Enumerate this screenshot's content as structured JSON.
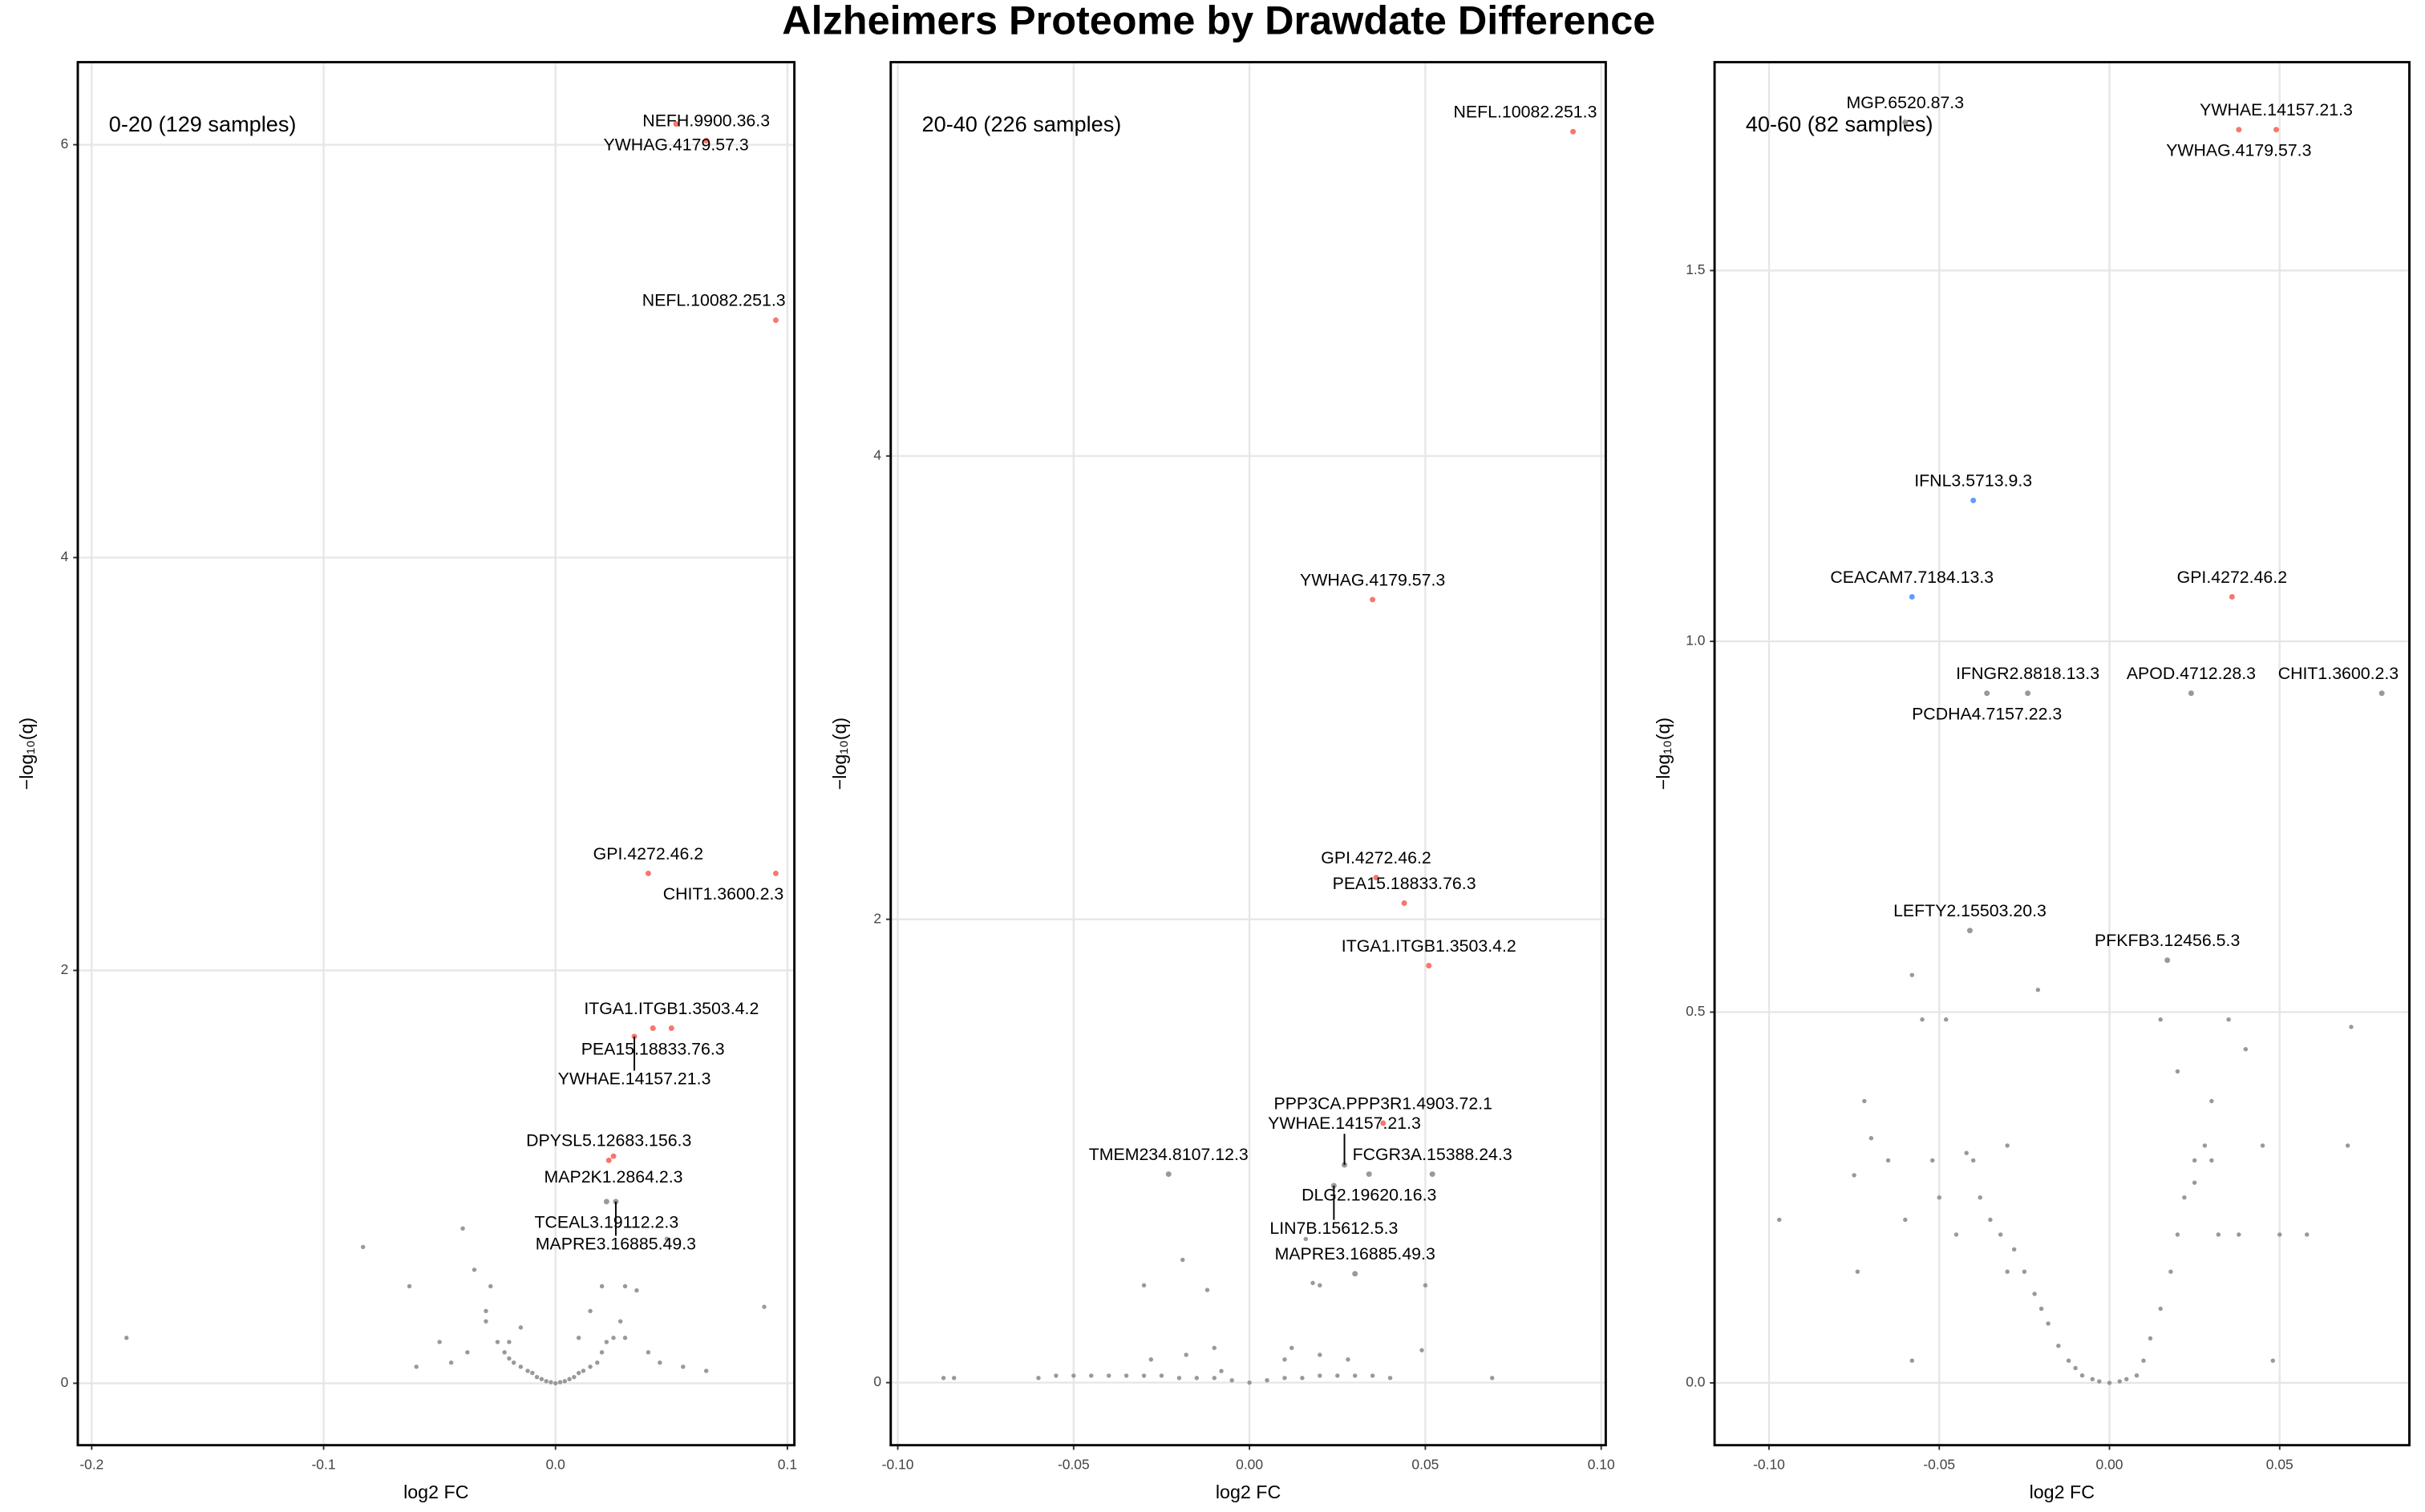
{
  "title": "Alzheimers Proteome by Drawdate Difference",
  "chart_data": [
    {
      "type": "scatter",
      "subtitle": "0-20 (129 samples)",
      "x_label": "log2 FC",
      "y_label": "−log₁₀(q)",
      "xlim": [
        -0.206,
        0.103
      ],
      "ylim": [
        -0.3,
        6.4
      ],
      "xticks": [
        -0.2,
        -0.1,
        {
          "value": 0,
          "label": "0.0"
        },
        0.1
      ],
      "yticks": [
        0,
        2,
        4,
        6
      ],
      "grid": true,
      "series": [
        {
          "color": "#f8766d",
          "x": [
            0.065,
            0.052,
            0.095,
            0.04,
            0.095,
            0.05,
            0.042,
            0.034,
            0.023,
            0.025
          ],
          "y": [
            6.02,
            6.1,
            5.15,
            2.47,
            2.47,
            1.72,
            1.72,
            1.68,
            1.08,
            1.1
          ],
          "labels": [
            "NEFH.9900.36.3",
            "YWHAG.4179.57.3",
            "NEFL.10082.251.3",
            "GPI.4272.46.2",
            "CHIT1.3600.2.3",
            "ITGA1.ITGB1.3503.4.2",
            "PEA15.18833.76.3",
            "YWHAE.14157.21.3",
            "DPYSL5.12683.156.3",
            "MAP2K1.2864.2.3"
          ]
        },
        {
          "color": "#999999",
          "x": [
            0.022,
            0.026
          ],
          "y": [
            0.88,
            0.88
          ],
          "labels": [
            "TCEAL3.19112.2.3",
            "MAPRE3.16885.49.3"
          ]
        },
        {
          "color": "#999999",
          "x": [
            -0.185,
            -0.083,
            -0.063,
            -0.06,
            -0.045,
            -0.04,
            -0.038,
            -0.035,
            -0.03,
            -0.028,
            -0.025,
            -0.022,
            -0.02,
            -0.018,
            -0.015,
            -0.012,
            -0.01,
            -0.008,
            -0.006,
            -0.004,
            -0.002,
            0,
            0.002,
            0.004,
            0.006,
            0.008,
            0.01,
            0.012,
            0.015,
            0.018,
            0.02,
            0.022,
            0.025,
            0.028,
            0.03,
            0.035,
            0.04,
            0.045,
            0.048,
            0.055,
            0.065,
            0.09,
            -0.05,
            -0.03,
            0.01,
            0.015,
            0.02,
            0.03,
            -0.015,
            -0.02
          ],
          "y": [
            0.22,
            0.66,
            0.47,
            0.08,
            0.1,
            0.75,
            0.15,
            0.55,
            0.3,
            0.47,
            0.2,
            0.15,
            0.12,
            0.1,
            0.08,
            0.06,
            0.05,
            0.03,
            0.02,
            0.01,
            0.005,
            0,
            0.005,
            0.01,
            0.02,
            0.03,
            0.05,
            0.06,
            0.08,
            0.1,
            0.15,
            0.2,
            0.22,
            0.3,
            0.47,
            0.45,
            0.15,
            0.1,
            0.7,
            0.08,
            0.06,
            0.37,
            0.2,
            0.35,
            0.22,
            0.35,
            0.47,
            0.22,
            0.27,
            0.2
          ]
        }
      ]
    },
    {
      "type": "scatter",
      "subtitle": "20-40 (226 samples)",
      "x_label": "log2 FC",
      "y_label": "−log₁₀(q)",
      "xlim": [
        -0.102,
        0.1013
      ],
      "ylim": [
        -0.27,
        5.7
      ],
      "xticks": [
        {
          "value": -0.1,
          "label": "-0.10"
        },
        {
          "value": -0.05,
          "label": "-0.05"
        },
        {
          "value": 0,
          "label": "0.00"
        },
        0.05,
        {
          "value": 0.1,
          "label": "0.10"
        }
      ],
      "yticks": [
        0,
        2,
        4
      ],
      "grid": true,
      "series": [
        {
          "color": "#f8766d",
          "x": [
            0.092,
            0.035,
            0.036,
            0.044,
            0.051,
            0.038
          ],
          "y": [
            5.4,
            3.38,
            2.18,
            2.07,
            1.8,
            1.12
          ],
          "labels": [
            "NEFL.10082.251.3",
            "YWHAG.4179.57.3",
            "GPI.4272.46.2",
            "PEA15.18833.76.3",
            "ITGA1.ITGB1.3503.4.2",
            "PPP3CA.PPP3R1.4903.72.1"
          ]
        },
        {
          "color": "#999999",
          "x": [
            0.052,
            0.034,
            0.027,
            0.024,
            -0.023,
            0.03
          ],
          "y": [
            0.9,
            0.9,
            0.94,
            0.85,
            0.9,
            0.47
          ],
          "labels": [
            "FCGR3A.15388.24.3",
            "DLG2.19620.16.3",
            "YWHAE.14157.21.3",
            "LIN7B.15612.5.3",
            "TMEM234.8107.12.3",
            "MAPRE3.16885.49.3"
          ]
        },
        {
          "color": "#999999",
          "x": [
            -0.087,
            -0.084,
            -0.06,
            -0.055,
            -0.05,
            -0.045,
            -0.04,
            -0.035,
            -0.03,
            -0.028,
            -0.025,
            -0.02,
            -0.015,
            -0.01,
            -0.005,
            0,
            0.005,
            0.01,
            0.015,
            0.02,
            0.025,
            0.03,
            0.035,
            0.04,
            -0.03,
            -0.019,
            -0.018,
            -0.012,
            -0.01,
            0.01,
            0.016,
            0.018,
            0.02,
            0.028,
            0.049,
            0.05,
            0.069,
            -0.008,
            0.012,
            0.02
          ],
          "y": [
            0.02,
            0.02,
            0.02,
            0.03,
            0.03,
            0.03,
            0.03,
            0.03,
            0.03,
            0.1,
            0.03,
            0.02,
            0.02,
            0.02,
            0.01,
            0,
            0.01,
            0.02,
            0.02,
            0.03,
            0.03,
            0.03,
            0.03,
            0.02,
            0.42,
            0.53,
            0.12,
            0.4,
            0.15,
            0.1,
            0.62,
            0.43,
            0.42,
            0.1,
            0.14,
            0.42,
            0.02,
            0.05,
            0.15,
            0.12
          ]
        }
      ]
    },
    {
      "type": "scatter",
      "subtitle": "40-60 (82 samples)",
      "x_label": "log2 FC",
      "y_label": "−log₁₀(q)",
      "xlim": [
        -0.116,
        0.0881
      ],
      "ylim": [
        -0.084,
        1.781
      ],
      "xticks": [
        {
          "value": -0.1,
          "label": "-0.10"
        },
        {
          "value": -0.05,
          "label": "-0.05"
        },
        {
          "value": 0,
          "label": "0.00"
        },
        0.05
      ],
      "yticks": [
        {
          "value": 0,
          "label": "0.0"
        },
        0.5,
        {
          "value": 1,
          "label": "1.0"
        },
        1.5
      ],
      "grid": true,
      "series": [
        {
          "color": "#f8766d",
          "x": [
            0.049,
            0.038,
            0.036
          ],
          "y": [
            1.69,
            1.69,
            1.06
          ],
          "labels": [
            "YWHAE.14157.21.3",
            "YWHAG.4179.57.3",
            "GPI.4272.46.2"
          ]
        },
        {
          "color": "#619cff",
          "x": [
            -0.04,
            -0.058
          ],
          "y": [
            1.19,
            1.06
          ],
          "labels": [
            "IFNL3.5713.9.3",
            "CEACAM7.7184.13.3"
          ]
        },
        {
          "color": "#999999",
          "x": [
            -0.06,
            -0.024,
            -0.036,
            0.024,
            0.08,
            -0.041,
            0.017
          ],
          "y": [
            1.7,
            0.93,
            0.93,
            0.93,
            0.93,
            0.61,
            0.57
          ],
          "labels": [
            "MGP.6520.87.3",
            "IFNGR2.8818.13.3",
            "PCDHA4.7157.22.3",
            "APOD.4712.28.3",
            "CHIT1.3600.2.3",
            "LEFTY2.15503.20.3",
            "PFKFB3.12456.5.3"
          ]
        },
        {
          "color": "#999999",
          "x": [
            -0.097,
            -0.075,
            -0.074,
            -0.072,
            -0.07,
            -0.065,
            -0.06,
            -0.058,
            -0.055,
            -0.052,
            -0.05,
            -0.048,
            -0.045,
            -0.042,
            -0.04,
            -0.038,
            -0.035,
            -0.032,
            -0.03,
            -0.028,
            -0.025,
            -0.022,
            -0.02,
            -0.018,
            -0.015,
            -0.012,
            -0.01,
            -0.008,
            -0.005,
            -0.003,
            0,
            0.003,
            0.005,
            0.008,
            0.01,
            0.012,
            0.015,
            0.018,
            0.02,
            0.022,
            0.025,
            0.028,
            0.03,
            0.032,
            0.035,
            0.038,
            0.04,
            0.045,
            0.048,
            0.05,
            0.058,
            0.07,
            0.071,
            -0.058,
            -0.021,
            0.015,
            0.02,
            0.03,
            -0.03,
            0.025
          ],
          "y": [
            0.22,
            0.28,
            0.15,
            0.38,
            0.33,
            0.3,
            0.22,
            0.03,
            0.49,
            0.3,
            0.25,
            0.49,
            0.2,
            0.31,
            0.3,
            0.25,
            0.22,
            0.2,
            0.32,
            0.18,
            0.15,
            0.12,
            0.1,
            0.08,
            0.05,
            0.03,
            0.02,
            0.01,
            0.005,
            0.002,
            0,
            0.002,
            0.005,
            0.01,
            0.03,
            0.06,
            0.1,
            0.15,
            0.2,
            0.25,
            0.3,
            0.32,
            0.3,
            0.2,
            0.49,
            0.2,
            0.45,
            0.32,
            0.03,
            0.2,
            0.2,
            0.32,
            0.48,
            0.55,
            0.53,
            0.49,
            0.42,
            0.38,
            0.15,
            0.27
          ]
        }
      ]
    }
  ]
}
